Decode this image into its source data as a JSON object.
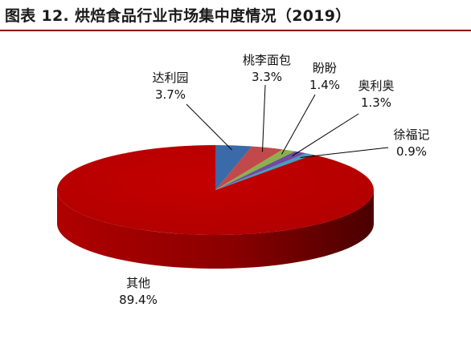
{
  "title": "图表 12. 烘焙食品行业市场集中度情况（2019）",
  "colors": {
    "title_rule": "#8b0000",
    "slices": [
      "#3a6aa7",
      "#c1494c",
      "#8cb04a",
      "#6f4ca0",
      "#41a0c0",
      "#c00000"
    ],
    "side_dark": "#4a0000"
  },
  "chart_data": {
    "type": "pie",
    "title": "图表 12. 烘焙食品行业市场集中度情况（2019）",
    "style": "3d",
    "slices": [
      {
        "name": "达利园",
        "value": 3.7,
        "label": "3.7%"
      },
      {
        "name": "桃李面包",
        "value": 3.3,
        "label": "3.3%"
      },
      {
        "name": "盼盼",
        "value": 1.4,
        "label": "1.4%"
      },
      {
        "name": "奥利奥",
        "value": 1.3,
        "label": "1.3%"
      },
      {
        "name": "徐福记",
        "value": 0.9,
        "label": "0.9%"
      },
      {
        "name": "其他",
        "value": 89.4,
        "label": "89.4%"
      }
    ]
  }
}
